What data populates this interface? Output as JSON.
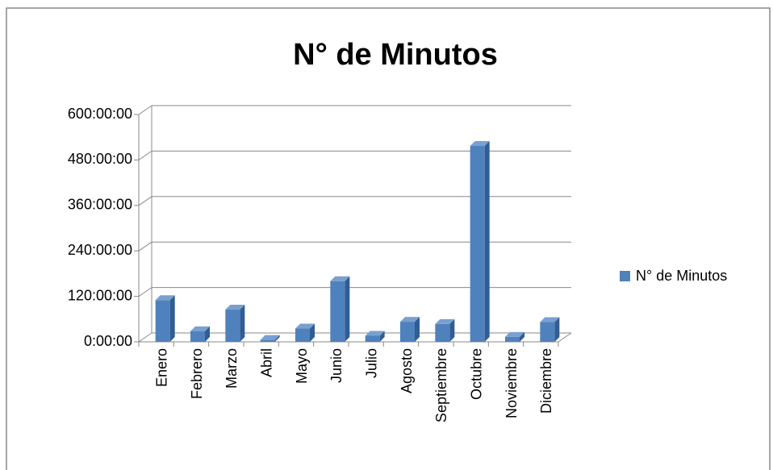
{
  "chart_data": {
    "type": "bar",
    "title": "N° de Minutos",
    "categories": [
      "Enero",
      "Febrero",
      "Marzo",
      "Abril",
      "Mayo",
      "Junio",
      "Julio",
      "Agosto",
      "Septiembre",
      "Octubre",
      "Noviembre",
      "Diciembre"
    ],
    "series": [
      {
        "name": "N° de Minutos",
        "color": "#4f81bd",
        "values": [
          110,
          28,
          85,
          5,
          35,
          160,
          16,
          53,
          47,
          517,
          13,
          52
        ]
      }
    ],
    "ylim": [
      0,
      600
    ],
    "yticks": [
      {
        "value": 0,
        "label": "0:00:00"
      },
      {
        "value": 120,
        "label": "120:00:00"
      },
      {
        "value": 240,
        "label": "240:00:00"
      },
      {
        "value": 360,
        "label": "360:00:00"
      },
      {
        "value": 480,
        "label": "480:00:00"
      },
      {
        "value": 600,
        "label": "600:00:00"
      }
    ],
    "grid": true,
    "legend": "right"
  }
}
